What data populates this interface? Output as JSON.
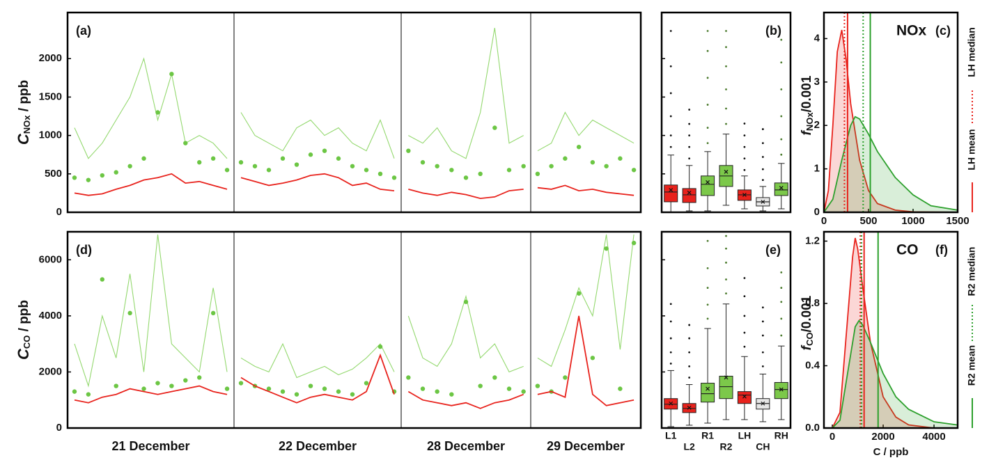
{
  "chart_data": [
    {
      "type": "timeseries",
      "label": "(a)",
      "y_label": {
        "main": "C",
        "sub": "NOx",
        "unit": " / ppb"
      },
      "ylim": [
        0,
        2600
      ],
      "yticks": [
        0,
        500,
        1000,
        1500,
        2000
      ],
      "series": [
        {
          "color": "#93d86e",
          "style": "line",
          "values": [
            [
              1100,
              700,
              900,
              1200,
              1500,
              2000,
              1200,
              1800,
              900,
              1000,
              900,
              700
            ],
            [
              1300,
              1000,
              900,
              800,
              1100,
              1200,
              1000,
              1100,
              900,
              800,
              1200,
              700
            ],
            [
              1000,
              900,
              1100,
              800,
              700,
              1300,
              2400,
              900,
              1000
            ],
            [
              800,
              900,
              1300,
              1000,
              1200,
              1100,
              1000,
              900
            ]
          ]
        },
        {
          "color": "#6cc644",
          "style": "dots",
          "values": [
            [
              450,
              420,
              480,
              520,
              600,
              700,
              1300,
              1800,
              900,
              650,
              700,
              550
            ],
            [
              650,
              600,
              550,
              700,
              620,
              750,
              800,
              700,
              600,
              550,
              500,
              450
            ],
            [
              800,
              650,
              600,
              550,
              450,
              500,
              1100,
              550,
              600
            ],
            [
              500,
              600,
              700,
              850,
              650,
              600,
              700,
              550
            ]
          ]
        },
        {
          "color": "#e8221c",
          "style": "line",
          "values": [
            [
              250,
              220,
              240,
              300,
              350,
              420,
              450,
              500,
              380,
              400,
              350,
              300
            ],
            [
              450,
              400,
              350,
              380,
              420,
              480,
              500,
              450,
              350,
              380,
              300,
              280
            ],
            [
              300,
              250,
              220,
              260,
              230,
              180,
              200,
              280,
              300
            ],
            [
              320,
              300,
              350,
              280,
              300,
              260,
              240,
              220
            ]
          ]
        }
      ]
    },
    {
      "type": "box",
      "label": "(b)",
      "ylim": [
        0,
        2600
      ],
      "yticks": [
        500,
        1000,
        1500,
        2000
      ],
      "colors": [
        "#e8221c",
        "#e8221c",
        "#7cc84a",
        "#7cc84a",
        "#e8221c",
        "#e6e6e6",
        "#7cc84a"
      ],
      "boxes": [
        {
          "whislo": 0,
          "q1": 136,
          "median": 264,
          "q3": 355,
          "whishi": 745,
          "mean": 290,
          "fliers": [
            850,
            1000,
            1250,
            1550,
            1900,
            2360
          ]
        },
        {
          "whislo": 18,
          "q1": 127,
          "median": 227,
          "q3": 309,
          "whishi": 609,
          "mean": 255,
          "fliers": [
            700,
            850,
            1000,
            1150,
            1336
          ]
        },
        {
          "whislo": 18,
          "q1": 218,
          "median": 364,
          "q3": 473,
          "whishi": 790,
          "mean": 391,
          "fliers": [
            900,
            1100,
            1400,
            1750,
            2100,
            2360
          ]
        },
        {
          "whislo": 91,
          "q1": 336,
          "median": 473,
          "q3": 609,
          "whishi": 1018,
          "mean": 527,
          "fliers": [
            1150,
            1350,
            1600,
            1900,
            2150,
            2360
          ]
        },
        {
          "whislo": 45,
          "q1": 155,
          "median": 227,
          "q3": 291,
          "whishi": 473,
          "mean": 227,
          "fliers": [
            550,
            700,
            850,
            1000,
            1155
          ]
        },
        {
          "whislo": 18,
          "q1": 82,
          "median": 136,
          "q3": 191,
          "whishi": 336,
          "mean": 136,
          "fliers": [
            420,
            560,
            720,
            900,
            1082
          ]
        },
        {
          "whislo": 45,
          "q1": 218,
          "median": 291,
          "q3": 382,
          "whishi": 636,
          "mean": 318,
          "fliers": [
            750,
            950,
            1250,
            1600,
            1950,
            2245
          ]
        }
      ]
    },
    {
      "type": "density",
      "label": "(c)",
      "title": "NOx",
      "y_label": {
        "main": "f",
        "sub": "NOx",
        "unit": "/0.001"
      },
      "xlim": [
        0,
        1500
      ],
      "ylim": [
        0,
        4.6
      ],
      "xticks": [
        0,
        500,
        1000,
        1500
      ],
      "yticks": [
        0,
        1,
        2,
        3,
        4
      ],
      "series": [
        {
          "color": "#e8221c",
          "x": [
            0,
            50,
            100,
            150,
            200,
            250,
            300,
            400,
            500,
            600,
            800,
            1000,
            1500
          ],
          "values": [
            0,
            0.5,
            2,
            3.7,
            4.2,
            3.5,
            2.5,
            1.2,
            0.5,
            0.2,
            0.05,
            0.01,
            0
          ]
        },
        {
          "color": "#2ca02c",
          "x": [
            0,
            100,
            200,
            300,
            350,
            400,
            500,
            600,
            800,
            1000,
            1200,
            1500
          ],
          "values": [
            0,
            0.3,
            1.2,
            2.0,
            2.2,
            2.15,
            1.8,
            1.4,
            0.8,
            0.4,
            0.15,
            0.05
          ]
        }
      ],
      "vlines": [
        230,
        265,
        440,
        520
      ]
    },
    {
      "type": "timeseries",
      "label": "(d)",
      "y_label": {
        "main": "C",
        "sub": "CO",
        "unit": " / ppb"
      },
      "ylim": [
        0,
        7000
      ],
      "yticks": [
        0,
        2000,
        4000,
        6000
      ],
      "day_labels": [
        "21 December",
        "22 December",
        "28 December",
        "29 December"
      ],
      "series": [
        {
          "color": "#93d86e",
          "style": "line",
          "values": [
            [
              3000,
              1500,
              4000,
              2500,
              5500,
              2000,
              6900,
              3000,
              2500,
              2000,
              5000,
              2000
            ],
            [
              2500,
              2200,
              2000,
              3000,
              1800,
              2000,
              2200,
              1900,
              2100,
              2500,
              3000,
              2000
            ],
            [
              4000,
              2500,
              2200,
              3000,
              4700,
              2500,
              3000,
              2000,
              2200
            ],
            [
              2500,
              2200,
              3500,
              5000,
              4000,
              6900,
              2800,
              6900
            ]
          ]
        },
        {
          "color": "#6cc644",
          "style": "dots",
          "values": [
            [
              1300,
              1200,
              5300,
              1500,
              4100,
              1400,
              1600,
              1500,
              1700,
              1800,
              4100,
              1400
            ],
            [
              1600,
              1500,
              1400,
              1300,
              1200,
              1500,
              1400,
              1300,
              1200,
              1600,
              2900,
              1300
            ],
            [
              1800,
              1400,
              1300,
              1200,
              4500,
              1500,
              1800,
              1400,
              1300
            ],
            [
              1500,
              1300,
              1800,
              4800,
              2500,
              6400,
              1400,
              6600
            ]
          ]
        },
        {
          "color": "#e8221c",
          "style": "line",
          "values": [
            [
              1000,
              900,
              1100,
              1200,
              1400,
              1300,
              1200,
              1300,
              1400,
              1500,
              1300,
              1200
            ],
            [
              1800,
              1500,
              1300,
              1100,
              900,
              1100,
              1200,
              1100,
              1000,
              1300,
              2600,
              1200
            ],
            [
              1300,
              1000,
              900,
              800,
              900,
              700,
              900,
              1000,
              1200
            ],
            [
              1200,
              1300,
              1100,
              4000,
              1200,
              800,
              900,
              1000
            ]
          ]
        }
      ]
    },
    {
      "type": "box",
      "label": "(e)",
      "ylim": [
        0,
        7000
      ],
      "yticks": [
        2000,
        4000,
        6000
      ],
      "categories": [
        "L1",
        "L2",
        "R1",
        "R2",
        "LH",
        "CH",
        "RH"
      ],
      "colors": [
        "#e8221c",
        "#e8221c",
        "#7cc84a",
        "#7cc84a",
        "#e8221c",
        "#e6e6e6",
        "#7cc84a"
      ],
      "boxes": [
        {
          "whislo": 50,
          "q1": 675,
          "median": 850,
          "q3": 1050,
          "whishi": 2050,
          "mean": 875,
          "fliers": [
            2300,
            2700,
            3200,
            3800,
            4425
          ]
        },
        {
          "whislo": 100,
          "q1": 550,
          "median": 700,
          "q3": 875,
          "whishi": 1550,
          "mean": 725,
          "fliers": [
            1800,
            2200,
            2700,
            3200,
            3675
          ]
        },
        {
          "whislo": 175,
          "q1": 925,
          "median": 1225,
          "q3": 1600,
          "whishi": 3550,
          "mean": 1400,
          "fliers": [
            3900,
            4400,
            5000,
            5700,
            6675
          ]
        },
        {
          "whislo": 300,
          "q1": 1050,
          "median": 1475,
          "q3": 1850,
          "whishi": 4425,
          "mean": 1800,
          "fliers": [
            4800,
            5300,
            5900,
            6400,
            6850
          ]
        },
        {
          "whislo": 300,
          "q1": 875,
          "median": 1175,
          "q3": 1300,
          "whishi": 2550,
          "mean": 1125,
          "fliers": [
            2900,
            3400,
            4000,
            4700,
            5350
          ]
        },
        {
          "whislo": 225,
          "q1": 675,
          "median": 875,
          "q3": 1050,
          "whishi": 1925,
          "mean": 875,
          "fliers": [
            2200,
            2700,
            3300,
            3800,
            4300
          ]
        },
        {
          "whislo": 300,
          "q1": 1050,
          "median": 1375,
          "q3": 1625,
          "whishi": 2925,
          "mean": 1375,
          "fliers": [
            3300,
            3900,
            4500,
            5000,
            5550
          ]
        }
      ]
    },
    {
      "type": "density",
      "label": "(f)",
      "title": "CO",
      "y_label": {
        "main": "f",
        "sub": "CO",
        "unit": "/0.001"
      },
      "x_label": "C / ppb",
      "xlim": [
        -330,
        4930
      ],
      "ylim": [
        0,
        1.26
      ],
      "xticks": [
        0,
        2000,
        4000
      ],
      "yticks": [
        {
          "value": 0,
          "label": "0.0"
        },
        0.4,
        0.8,
        1.2
      ],
      "series": [
        {
          "color": "#e8221c",
          "x": [
            0,
            300,
            600,
            800,
            900,
            1000,
            1200,
            1500,
            2000,
            2500,
            3000,
            4000
          ],
          "values": [
            0,
            0.1,
            0.7,
            1.1,
            1.22,
            1.15,
            0.9,
            0.55,
            0.2,
            0.07,
            0.02,
            0
          ]
        },
        {
          "color": "#2ca02c",
          "x": [
            0,
            300,
            600,
            900,
            1050,
            1200,
            1500,
            2000,
            2500,
            3000,
            4000,
            4900
          ],
          "values": [
            0,
            0.05,
            0.35,
            0.65,
            0.69,
            0.66,
            0.55,
            0.35,
            0.2,
            0.12,
            0.04,
            0.02
          ]
        }
      ],
      "vlines": [
        1100,
        1250,
        1150,
        1800
      ]
    }
  ],
  "legend": [
    {
      "name": "LH median",
      "color": "#e8221c",
      "dash": true
    },
    {
      "name": "LH mean",
      "color": "#e8221c",
      "dash": false
    },
    {
      "name": "R2 median",
      "color": "#2ca02c",
      "dash": true
    },
    {
      "name": "R2 mean",
      "color": "#2ca02c",
      "dash": false
    }
  ]
}
